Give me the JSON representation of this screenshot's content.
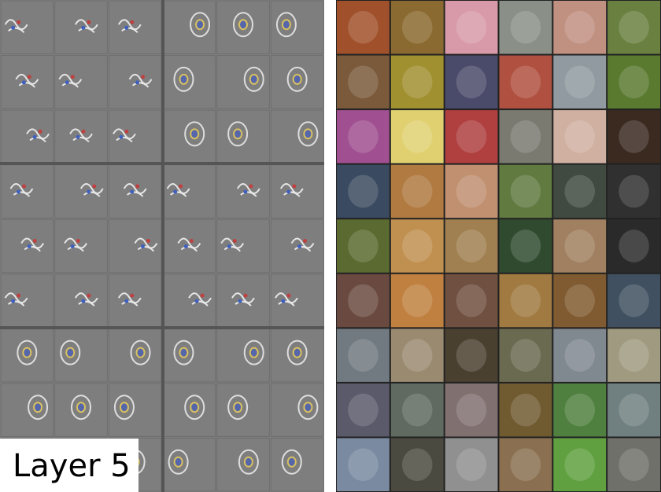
{
  "label": "Layer 5"
}
